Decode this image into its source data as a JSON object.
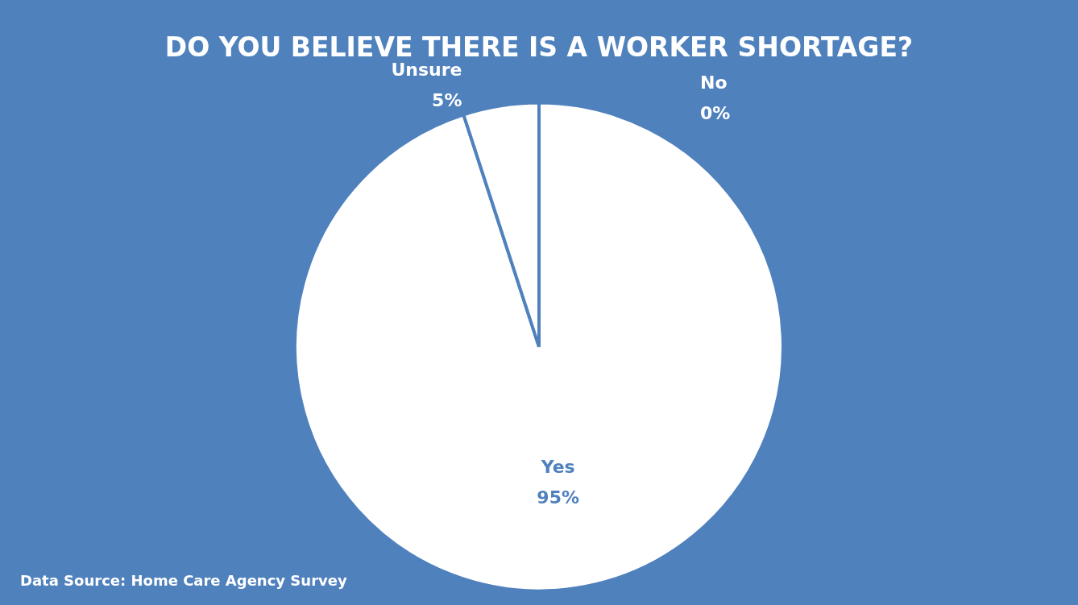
{
  "chart_data": {
    "type": "pie",
    "title": "DO YOU BELIEVE THERE IS A WORKER SHORTAGE?",
    "categories": [
      "No",
      "Yes",
      "Unsure"
    ],
    "values": [
      0,
      95,
      5
    ],
    "colors": [
      "#ffffff",
      "#ffffff",
      "#ffffff"
    ],
    "value_labels": [
      "0%",
      "95%",
      "5%"
    ],
    "annotations": [
      "Data Source: Home Care Agency Survey"
    ]
  }
}
